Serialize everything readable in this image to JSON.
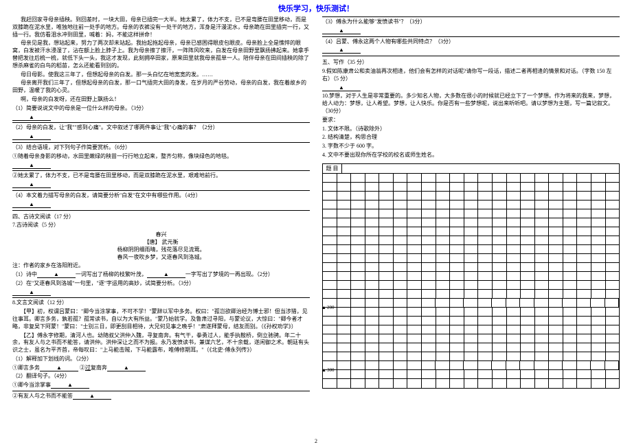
{
  "header": {
    "title": "快乐学习，快乐测试！"
  },
  "page_number": "2",
  "left": {
    "passage": [
      "我赶回家寻母亲插秧。到回差时，一块大田，母亲已插完一大半。她太累了，体力不支，已不是弯腰在田里移动，而是双膝跪在泥水里，唯独地往前一处手的地方。母亲的衣裤没有一处干的地方，浑身是汗漫泥水，母亲跪在田里插完一行，又插一行。我仿看泪水冲到田里，喊着：妈，不能这样拼命！",
      "母亲见是我，想站起来，努力了两次却未站起。我抬起拖起母亲，母亲已感困得眼皮包眼皮。母亲脸上全是憔悴的眼窝，白发被汗水浸湿了，沾在额上脸上脖子上。我为母亲擦了擦汗，一阵阵风吹来，白发在母亲田野里飘扬拂起来。她拿手替把发往后梳一梳，就低下头一头，我这才发现，此刻拥卒田家，原来田里就我母亲孤单一人。陪伴母亲在田间插秧的除了想杀麻雀的白鸟的稻苗，怎么还能看到别的。",
      "母日母影。使我这三年了，但想起母亲的白发。那一头白忆在地宽宽的发。……",
      "母亲离开我们三年了，但想起母亲的白发，那一口气插完大田的身发，在岁月的严谷劳动，母亲的白发，我在着故乡的田野，温暖了我的心灵。",
      "啊，母亲的白发呀，还在田野上飘扬么！"
    ],
    "questions": [
      {
        "num": "（1）",
        "text": "简要说说文中的母亲是一位什么样的母亲。（3分）"
      },
      {
        "num": "（2）",
        "text": "母亲的白发，让\"我\"\"感到心痛\"。文中叙述了哪两件事让\"我\"心痛的事？（2分）"
      },
      {
        "num": "（3）",
        "text": "结合语境，对下列句子作简要赏析。（6分）"
      }
    ],
    "sub3": [
      "①随着母亲身影的移动，水田里嫩绿的秧苗一行行地立起来，整齐匀称，像块绿色的地毯。",
      "②她太累了，体力不支，已不是弯腰在田里移动，而是双膝跪在泥水里，艰难地前行。"
    ],
    "q4": "（4）本文着力描写母亲的白发，请简要分析\"白发\"在文中有哪些作用。（4分）",
    "section4": "四、古诗文阅读（17 分）",
    "poem_head": "7.古诗阅读（5 分）",
    "poem_title": "春兴",
    "poem_author": "【唐】 武元衡",
    "poem_lines": [
      "杨柳阴阴细雨晴，残花落尽见流莺。",
      "春风一夜吹乡梦，又逐春风到洛城。"
    ],
    "poem_note": "注：作者的家乡在洛阳附近。",
    "poem_q1": "（1）诗中______一词写出了杨柳的枝繁叶茂，______一字写出了梦境的一再出现。（2分）",
    "poem_q2": "（2）在\"又逐春风到洛城\"一句里，\"逐\"字运用的高妙，试简要分析。（3分）",
    "wenyan_head": "8.文言文阅读（12 分）",
    "wenyan_body": [
      "【甲】初，权谓吕蒙曰：\"卿今当涂掌事，不可不学！\"蒙辞以军中多务。权曰：\"孤岂欲卿治经为博士邪！但当涉猎，见往事耳。卿言多务，孰若孤？孤常读书，自以为大有所益。\"蒙乃始就学。及鲁肃过寻阳，与蒙论议，大惊曰：\"卿今者才略，非复吴下阿蒙！\"蒙曰：\"士别三日，即更刮目相待，大兄何见事之晚乎！\"肃遂拜蒙母，结友而别。（《孙权劝学》）",
      "【乙】傅永字修期，清河人也。幼随叔父洪仲入魏，寻复南奔。有气干，拳勇过人，能手执鞍桥，倒立驰骋。年二十余，有友人与之书而不能答，请洪仲。洪仲深让之而不为报。永乃发愤读书，兼谋六艺，不十余载，遂闲御之术。朝廷有头识之士，虽名为平齐首，帝每叹曰：\"上马能击贼，下马能露布，唯傅修期耳。\"（《北史·傅永列传》）"
    ],
    "wy_q1": "（1）解释加下划线的词。（2分）",
    "wy_q1a": "①卿言多务______  ②过寻南奔______",
    "wy_q2": "（2）翻译句子。（4分）",
    "wy_q2a": "①卿今当涂掌事______",
    "wy_q2b": "②有友人与之书而不能答______"
  },
  "right": {
    "q3": "（3）傅永为什么能够\"发愤读书\"？（3分）",
    "q4": "（4）吕蒙、傅永这两个人物有哪些共同特点？（3分）",
    "section5": "五、写作（35 分）",
    "q9": "9.假如陈康肃公和卖油翁再次相逢，他们会有怎样的对话呢?请你写一段话，描述二者再相逢的情景和对话。（字数 150 左右）（5 分）",
    "q10": "10.梦想，对于人生是非常重要的。多少知名人物，大多数在很小的时候就已经立下了一个梦想。作为将来的我来，梦想，给人动力：梦想，让人希望。梦想，让人快乐。你是否有一些梦想呢，说出来听听吧。请以梦想为主题，写一篇记叙文。（30分）",
    "reqs_head": "要求：",
    "reqs": [
      "1. 文体不限。（诗歌除外）",
      "2. 结构清楚，构思合理",
      "3. 字数不少于 600 字。",
      "4. 文中不要出现你所在学校的校名或师生姓名。"
    ],
    "grid": {
      "head": "题   目",
      "cols": 21,
      "rows": 24,
      "markers": {
        "14": "200",
        "21": "300"
      }
    }
  }
}
